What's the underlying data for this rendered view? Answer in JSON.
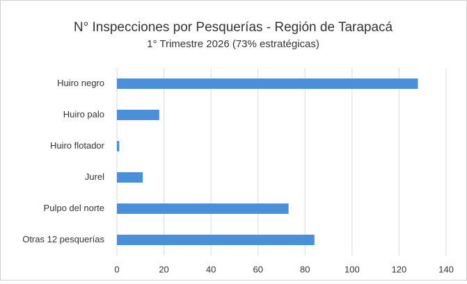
{
  "chart_data": {
    "type": "bar",
    "orientation": "horizontal",
    "title": "N° Inspecciones por Pesquerías - Región de Tarapacá",
    "subtitle": "1° Trimestre 2026 (73% estratégicas)",
    "categories": [
      "Huiro negro",
      "Huiro palo",
      "Huiro flotador",
      "Jurel",
      "Pulpo del norte",
      "Otras 12 pesquerías"
    ],
    "values": [
      128,
      18,
      1,
      11,
      73,
      84
    ],
    "color": "#4a8fd9",
    "xlim": [
      0,
      140
    ],
    "xticks": [
      0,
      20,
      40,
      60,
      80,
      100,
      120,
      140
    ],
    "grid": true
  }
}
